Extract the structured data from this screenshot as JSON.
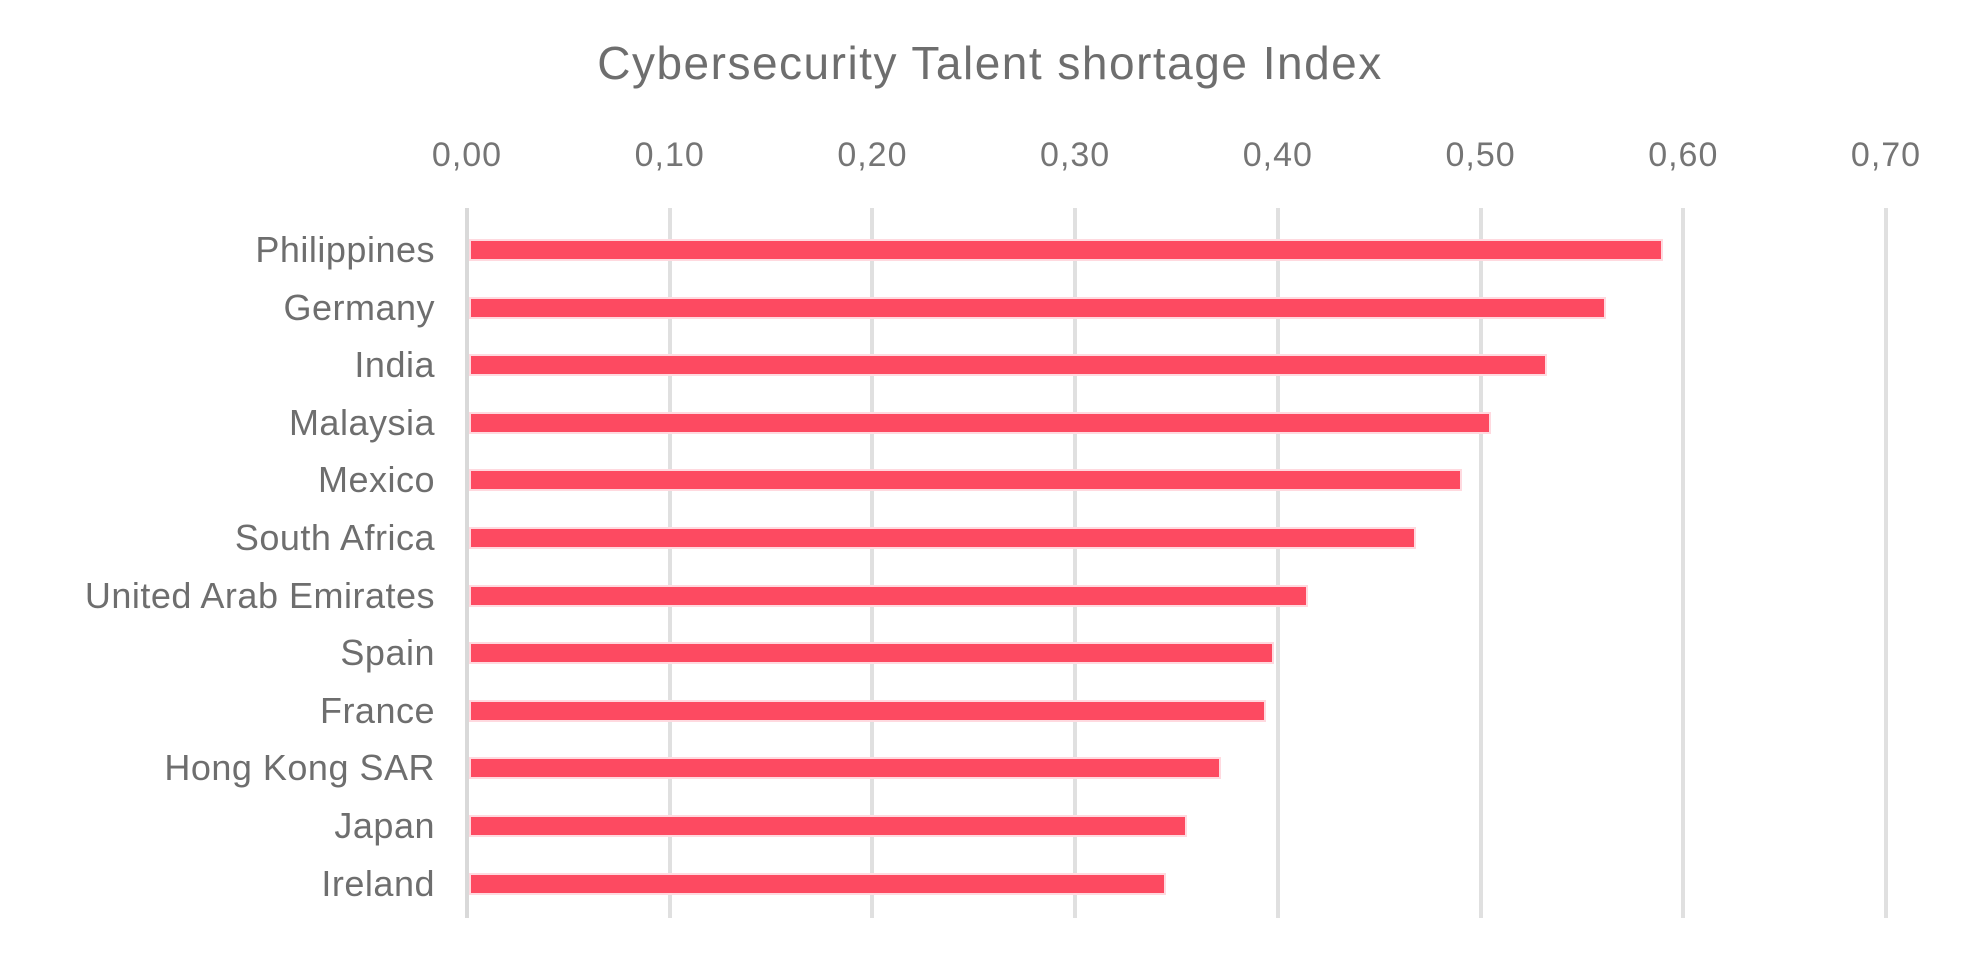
{
  "chart_data": {
    "type": "bar",
    "orientation": "horizontal",
    "title": "Cybersecurity Talent shortage Index",
    "categories": [
      "Philippines",
      "Germany",
      "India",
      "Malaysia",
      "Mexico",
      "South Africa",
      "United Arab Emirates",
      "Spain",
      "France",
      "Hong Kong SAR",
      "Japan",
      "Ireland"
    ],
    "values": [
      0.59,
      0.562,
      0.533,
      0.505,
      0.491,
      0.468,
      0.415,
      0.398,
      0.394,
      0.372,
      0.355,
      0.345
    ],
    "xlabel": "",
    "ylabel": "",
    "xlim": [
      0,
      0.7
    ],
    "x_ticks": [
      0.0,
      0.1,
      0.2,
      0.3,
      0.4,
      0.5,
      0.6,
      0.7
    ],
    "x_tick_labels": [
      "0,00",
      "0,10",
      "0,20",
      "0,30",
      "0,40",
      "0,50",
      "0,60",
      "0,70"
    ],
    "decimal_separator": ",",
    "grid": "vertical",
    "legend": "none",
    "colors": {
      "bar": "#FD4A61",
      "bar_edge": "#FFD9DF",
      "grid": "#E0E0E0",
      "title_text": "#6E6E6E",
      "category_text": "#6E6E6E",
      "tick_text": "#757575",
      "background": "#FFFFFF"
    }
  }
}
